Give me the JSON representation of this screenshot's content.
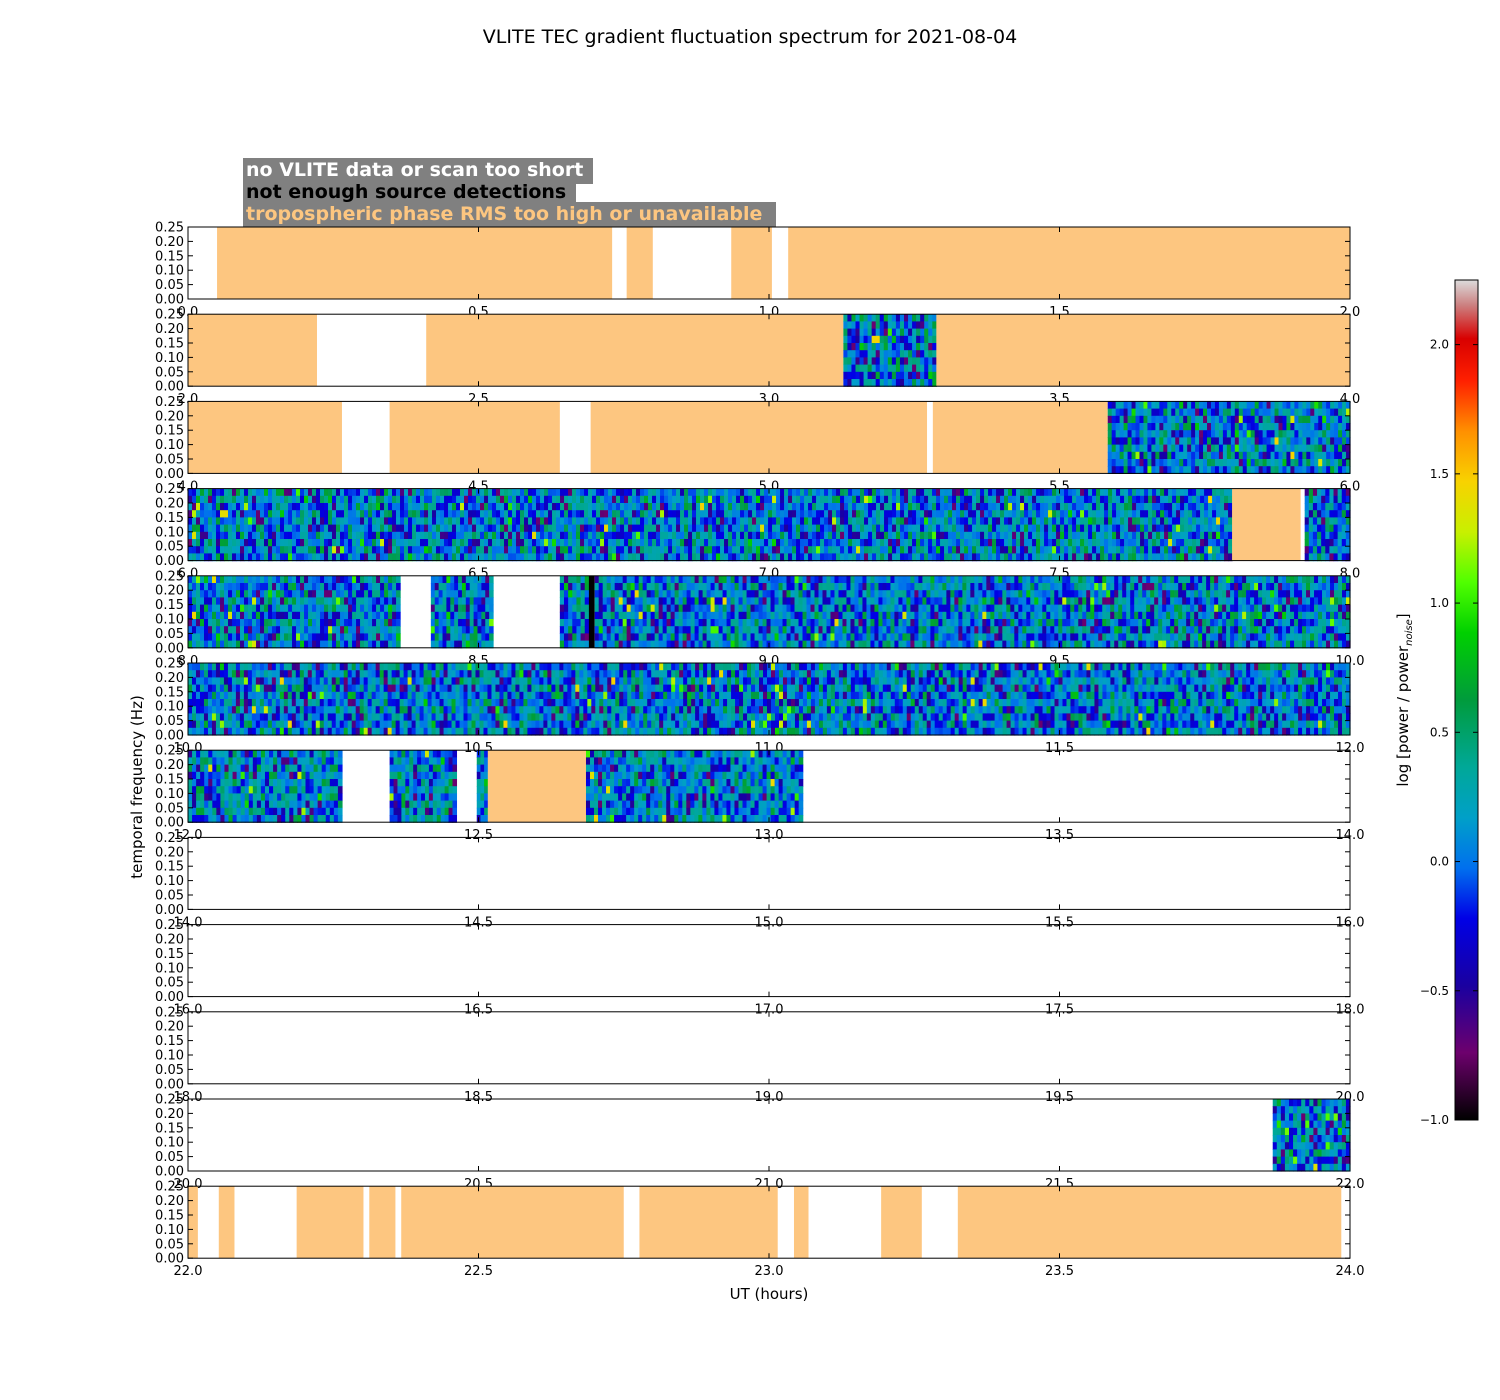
{
  "chart_data": {
    "type": "heatmap",
    "title": "VLITE TEC gradient fluctuation spectrum for 2021-08-04",
    "xlabel": "UT (hours)",
    "ylabel": "temporal frequency (Hz)",
    "colorbar_label": "log [power / power",
    "colorbar_label_sub": "noise",
    "colorbar_label_close": "]",
    "colorbar_range": [
      -1.0,
      2.25
    ],
    "colorbar_ticks": [
      "2.0",
      "1.5",
      "1.0",
      "0.5",
      "0.0",
      "−0.5",
      "−1.0"
    ],
    "colorbar_tick_values": [
      2.0,
      1.5,
      1.0,
      0.5,
      0.0,
      -0.5,
      -1.0
    ],
    "ylim": [
      0,
      0.25
    ],
    "yticks": [
      "0.25",
      "0.20",
      "0.15",
      "0.10",
      "0.05",
      "0.00"
    ],
    "ytick_values": [
      0.25,
      0.2,
      0.15,
      0.1,
      0.05,
      0.0
    ],
    "legend": [
      {
        "label": "no VLITE data or scan too short",
        "color": "#ffffff"
      },
      {
        "label": "not enough source detections",
        "color": "#000000"
      },
      {
        "label": "tropospheric phase RMS too high or unavailable",
        "color": "#fdc680"
      }
    ],
    "legend_background": "#808080",
    "flag_color": "#fdc680",
    "panels": [
      {
        "xlim": [
          0.0,
          2.0
        ],
        "xticks": [
          "0.0",
          "0.5",
          "1.0",
          "1.5",
          "2.0"
        ],
        "segments": [
          {
            "start": 0.05,
            "end": 0.73,
            "state": "tropo"
          },
          {
            "start": 0.755,
            "end": 0.8,
            "state": "tropo"
          },
          {
            "start": 0.935,
            "end": 1.005,
            "state": "tropo"
          },
          {
            "start": 1.033,
            "end": 2.0,
            "state": "tropo"
          }
        ]
      },
      {
        "xlim": [
          2.0,
          4.0
        ],
        "xticks": [
          "2.0",
          "2.5",
          "3.0",
          "3.5",
          "4.0"
        ],
        "segments": [
          {
            "start": 2.0,
            "end": 2.222,
            "state": "tropo"
          },
          {
            "start": 2.41,
            "end": 3.128,
            "state": "tropo"
          },
          {
            "start": 3.128,
            "end": 3.288,
            "state": "data"
          },
          {
            "start": 3.288,
            "end": 4.0,
            "state": "tropo"
          }
        ]
      },
      {
        "xlim": [
          4.0,
          6.0
        ],
        "xticks": [
          "4.0",
          "4.5",
          "5.0",
          "5.5",
          "6.0"
        ],
        "segments": [
          {
            "start": 4.0,
            "end": 4.265,
            "state": "tropo"
          },
          {
            "start": 4.347,
            "end": 4.64,
            "state": "tropo"
          },
          {
            "start": 4.693,
            "end": 5.272,
            "state": "tropo"
          },
          {
            "start": 5.282,
            "end": 5.583,
            "state": "tropo"
          },
          {
            "start": 5.583,
            "end": 6.0,
            "state": "data"
          }
        ]
      },
      {
        "xlim": [
          6.0,
          8.0
        ],
        "xticks": [
          "6.0",
          "6.5",
          "7.0",
          "7.5",
          "8.0"
        ],
        "segments": [
          {
            "start": 6.0,
            "end": 7.797,
            "state": "data"
          },
          {
            "start": 7.797,
            "end": 7.915,
            "state": "tropo"
          },
          {
            "start": 7.922,
            "end": 8.0,
            "state": "data"
          }
        ]
      },
      {
        "xlim": [
          8.0,
          10.0
        ],
        "xticks": [
          "8.0",
          "8.5",
          "9.0",
          "9.5",
          "10.0"
        ],
        "segments": [
          {
            "start": 8.0,
            "end": 8.365,
            "state": "data"
          },
          {
            "start": 8.418,
            "end": 8.525,
            "state": "data"
          },
          {
            "start": 8.64,
            "end": 8.69,
            "state": "data"
          },
          {
            "start": 8.69,
            "end": 8.7,
            "state": "nodet"
          },
          {
            "start": 8.7,
            "end": 10.0,
            "state": "data"
          }
        ]
      },
      {
        "xlim": [
          10.0,
          12.0
        ],
        "xticks": [
          "10.0",
          "10.5",
          "11.0",
          "11.5",
          "12.0"
        ],
        "segments": [
          {
            "start": 10.0,
            "end": 12.0,
            "state": "data"
          }
        ]
      },
      {
        "xlim": [
          12.0,
          14.0
        ],
        "xticks": [
          "12.0",
          "12.5",
          "13.0",
          "13.5",
          "14.0"
        ],
        "segments": [
          {
            "start": 12.0,
            "end": 12.265,
            "state": "data"
          },
          {
            "start": 12.347,
            "end": 12.462,
            "state": "data"
          },
          {
            "start": 12.497,
            "end": 12.516,
            "state": "data"
          },
          {
            "start": 12.516,
            "end": 12.685,
            "state": "tropo"
          },
          {
            "start": 12.685,
            "end": 13.058,
            "state": "data"
          }
        ]
      },
      {
        "xlim": [
          14.0,
          16.0
        ],
        "xticks": [
          "14.0",
          "14.5",
          "15.0",
          "15.5",
          "16.0"
        ],
        "segments": []
      },
      {
        "xlim": [
          16.0,
          18.0
        ],
        "xticks": [
          "16.0",
          "16.5",
          "17.0",
          "17.5",
          "18.0"
        ],
        "segments": []
      },
      {
        "xlim": [
          18.0,
          20.0
        ],
        "xticks": [
          "18.0",
          "18.5",
          "19.0",
          "19.5",
          "20.0"
        ],
        "segments": []
      },
      {
        "xlim": [
          20.0,
          22.0
        ],
        "xticks": [
          "20.0",
          "20.5",
          "21.0",
          "21.5",
          "22.0"
        ],
        "segments": [
          {
            "start": 21.867,
            "end": 22.0,
            "state": "data"
          }
        ]
      },
      {
        "xlim": [
          22.0,
          24.0
        ],
        "xticks": [
          "22.0",
          "22.5",
          "23.0",
          "23.5",
          "24.0"
        ],
        "segments": [
          {
            "start": 22.0,
            "end": 22.017,
            "state": "tropo"
          },
          {
            "start": 22.053,
            "end": 22.08,
            "state": "tropo"
          },
          {
            "start": 22.187,
            "end": 22.302,
            "state": "tropo"
          },
          {
            "start": 22.312,
            "end": 22.357,
            "state": "tropo"
          },
          {
            "start": 22.367,
            "end": 22.75,
            "state": "tropo"
          },
          {
            "start": 22.777,
            "end": 23.015,
            "state": "tropo"
          },
          {
            "start": 23.043,
            "end": 23.068,
            "state": "tropo"
          },
          {
            "start": 23.193,
            "end": 23.263,
            "state": "tropo"
          },
          {
            "start": 23.325,
            "end": 23.985,
            "state": "tropo"
          }
        ]
      }
    ]
  }
}
